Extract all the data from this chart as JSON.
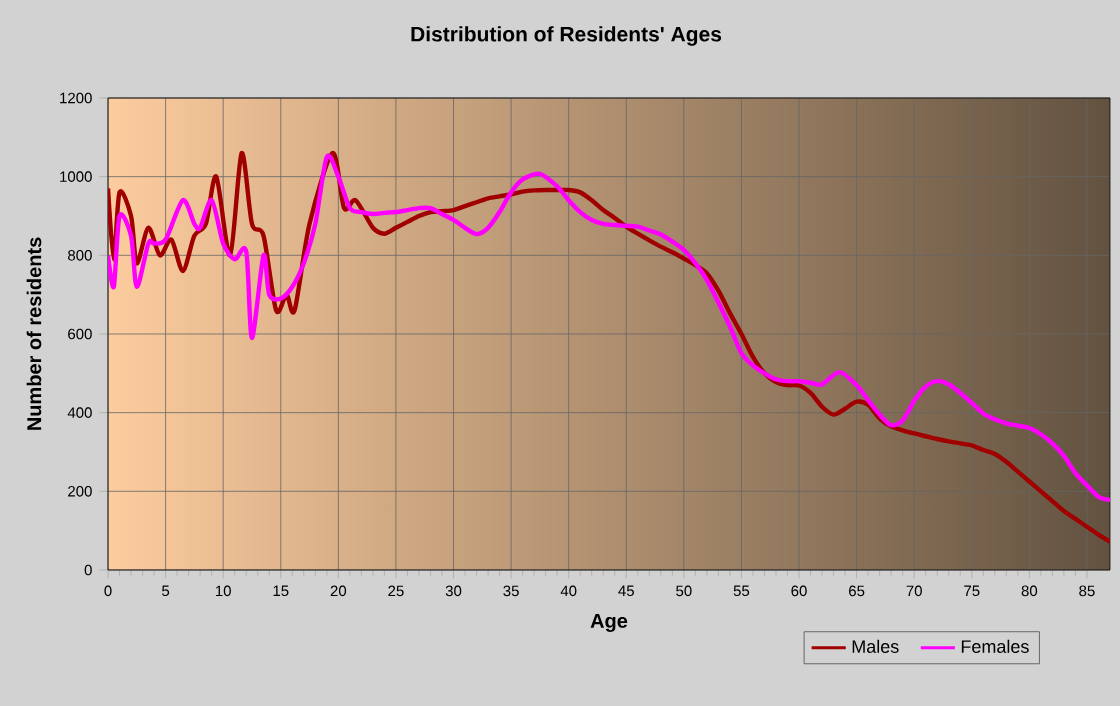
{
  "chart_data": {
    "type": "line",
    "title": "Distribution of Residents' Ages",
    "xlabel": "Age",
    "ylabel": "Number of residents",
    "xlim": [
      0,
      87
    ],
    "ylim": [
      0,
      1200
    ],
    "xticks": [
      0,
      5,
      10,
      15,
      20,
      25,
      30,
      35,
      40,
      45,
      50,
      55,
      60,
      65,
      70,
      75,
      80,
      85
    ],
    "yticks": [
      0,
      200,
      400,
      600,
      800,
      1000,
      1200
    ],
    "grid": true,
    "legend": "bottom right",
    "line_style": "solid",
    "marker": "none",
    "series": [
      {
        "name": "Males",
        "color": "#a00000",
        "x": [
          0,
          0.5,
          1,
          2,
          2.5,
          3.5,
          4.5,
          5.5,
          6.5,
          7.5,
          8.5,
          9.4,
          10.6,
          11.6,
          12.5,
          13.5,
          14.6,
          15.5,
          16.2,
          17.5,
          19.5,
          20.5,
          21.5,
          23,
          24,
          25,
          26,
          27,
          28,
          29,
          30,
          31,
          32,
          33,
          34,
          35,
          36,
          37,
          38,
          39,
          40,
          41,
          42,
          43,
          44,
          45,
          46,
          47,
          48,
          49,
          50,
          51,
          52,
          53,
          54,
          55,
          56,
          57,
          58,
          59,
          60,
          61,
          62,
          63,
          64,
          65,
          66,
          67,
          68,
          69,
          70,
          71,
          72,
          73,
          74,
          75,
          76,
          77,
          78,
          79,
          80,
          81,
          82,
          83,
          84,
          85,
          86,
          87
        ],
        "values": [
          970,
          790,
          960,
          900,
          780,
          870,
          800,
          840,
          760,
          850,
          880,
          1000,
          800,
          1060,
          880,
          850,
          660,
          700,
          660,
          880,
          1060,
          920,
          940,
          870,
          855,
          870,
          885,
          900,
          910,
          912,
          915,
          925,
          935,
          945,
          950,
          955,
          962,
          965,
          966,
          966,
          966,
          960,
          940,
          915,
          895,
          873,
          855,
          838,
          822,
          808,
          792,
          775,
          754,
          710,
          653,
          600,
          542,
          500,
          478,
          470,
          469,
          450,
          415,
          395,
          410,
          428,
          420,
          385,
          365,
          355,
          347,
          340,
          333,
          327,
          322,
          317,
          305,
          295,
          275,
          250,
          225,
          200,
          175,
          150,
          130,
          110,
          90,
          72
        ]
      },
      {
        "name": "Females",
        "color": "#ff00ff",
        "x": [
          0,
          0.5,
          1,
          2,
          2.5,
          3.5,
          4,
          5,
          6.5,
          7.5,
          8,
          9,
          10,
          11,
          12,
          12.5,
          13.5,
          14,
          15,
          16,
          17,
          18,
          19,
          20,
          21,
          22,
          23,
          24,
          25,
          26,
          27,
          28,
          29,
          30,
          31,
          32,
          33,
          34,
          35,
          36,
          37.5,
          39,
          40,
          41,
          42,
          43,
          44,
          45,
          46,
          47,
          48,
          49,
          50,
          51,
          52,
          53,
          54,
          55,
          56,
          57,
          58,
          59,
          60,
          61,
          62,
          63.5,
          65,
          66,
          67,
          68,
          69,
          70,
          71,
          72,
          73,
          74,
          75,
          76,
          77,
          78,
          79,
          80,
          81,
          82,
          83,
          84,
          85,
          86,
          87
        ],
        "values": [
          800,
          720,
          900,
          850,
          720,
          830,
          830,
          840,
          940,
          880,
          870,
          940,
          830,
          790,
          810,
          590,
          800,
          700,
          690,
          720,
          780,
          880,
          1050,
          1000,
          920,
          910,
          905,
          908,
          910,
          915,
          920,
          920,
          905,
          890,
          870,
          854,
          870,
          910,
          960,
          993,
          1007,
          975,
          940,
          910,
          890,
          880,
          877,
          875,
          873,
          863,
          853,
          835,
          814,
          780,
          737,
          680,
          619,
          551,
          520,
          500,
          485,
          480,
          480,
          476,
          472,
          503,
          470,
          432,
          395,
          368,
          380,
          430,
          466,
          480,
          472,
          450,
          425,
          398,
          383,
          373,
          367,
          361,
          345,
          322,
          290,
          246,
          215,
          186,
          178
        ]
      }
    ]
  }
}
